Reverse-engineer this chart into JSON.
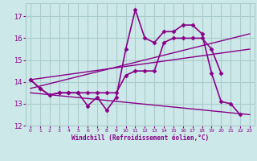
{
  "background_color": "#cce8e8",
  "grid_color": "#aacccc",
  "line_color": "#880088",
  "xlabel": "Windchill (Refroidissement éolien,°C)",
  "xlim": [
    -0.5,
    23.5
  ],
  "ylim": [
    12,
    17.6
  ],
  "yticks": [
    12,
    13,
    14,
    15,
    16,
    17
  ],
  "xticks": [
    0,
    1,
    2,
    3,
    4,
    5,
    6,
    7,
    8,
    9,
    10,
    11,
    12,
    13,
    14,
    15,
    16,
    17,
    18,
    19,
    20,
    21,
    22,
    23
  ],
  "series_main": {
    "x": [
      0,
      1,
      2,
      3,
      4,
      5,
      6,
      7,
      8,
      9,
      10,
      11,
      12,
      13,
      14,
      15,
      16,
      17,
      18,
      19,
      20,
      21,
      22
    ],
    "y": [
      14.1,
      13.7,
      13.4,
      13.5,
      13.5,
      13.5,
      12.9,
      13.3,
      12.7,
      13.3,
      15.5,
      17.3,
      16.0,
      15.8,
      16.3,
      16.3,
      16.6,
      16.6,
      16.2,
      14.4,
      13.1,
      13.0,
      12.5
    ]
  },
  "series_smooth": {
    "x": [
      0,
      1,
      2,
      3,
      4,
      5,
      6,
      7,
      8,
      9,
      10,
      11,
      12,
      13,
      14,
      15,
      16,
      17,
      18,
      19,
      20
    ],
    "y": [
      14.1,
      13.7,
      13.4,
      13.5,
      13.5,
      13.5,
      13.5,
      13.5,
      13.5,
      13.5,
      14.3,
      14.5,
      14.5,
      14.5,
      15.8,
      16.0,
      16.0,
      16.0,
      16.0,
      15.5,
      14.4
    ]
  },
  "trend_lines": [
    {
      "x0": 0,
      "y0": 13.7,
      "x1": 23,
      "y1": 16.2
    },
    {
      "x0": 0,
      "y0": 14.1,
      "x1": 23,
      "y1": 15.5
    },
    {
      "x0": 0,
      "y0": 13.5,
      "x1": 23,
      "y1": 12.5
    }
  ]
}
